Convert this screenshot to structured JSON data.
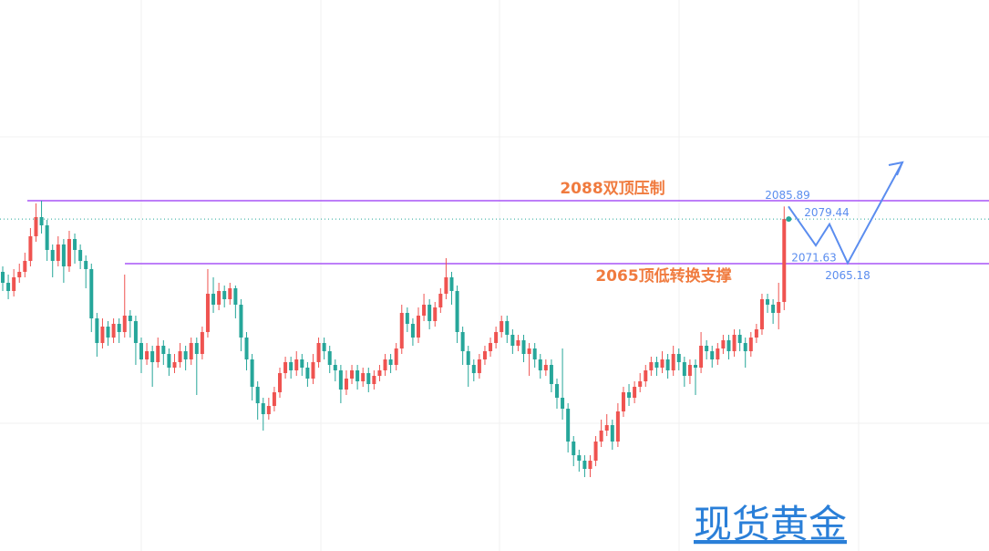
{
  "chart_data": {
    "type": "candlestick",
    "ylim": [
      1960,
      2161.33
    ],
    "up_color": "#ef5350",
    "down_color": "#26a69a",
    "open": [
      2062,
      2058,
      2055,
      2060,
      2062,
      2066,
      2075,
      2082,
      2079,
      2070,
      2066,
      2072,
      2064,
      2074,
      2070,
      2066,
      2063,
      2045,
      2036,
      2042,
      2038,
      2043,
      2040,
      2046,
      2044,
      2036,
      2030,
      2033,
      2029,
      2035,
      2032,
      2027,
      2029,
      2033,
      2030,
      2036,
      2032,
      2040,
      2054,
      2050,
      2055,
      2052,
      2056,
      2050,
      2038,
      2030,
      2020,
      2014,
      2010,
      2013,
      2018,
      2025,
      2029,
      2026,
      2030,
      2027,
      2023,
      2029,
      2036,
      2033,
      2028,
      2026,
      2019,
      2023,
      2026,
      2022,
      2025,
      2021,
      2024,
      2026,
      2030,
      2028,
      2034,
      2047,
      2043,
      2038,
      2046,
      2050,
      2044,
      2049,
      2054,
      2060,
      2055,
      2040,
      2033,
      2028,
      2025,
      2030,
      2033,
      2036,
      2040,
      2044,
      2039,
      2035,
      2037,
      2032,
      2034,
      2030,
      2026,
      2028,
      2021,
      2016,
      2012,
      2000,
      1995,
      1993,
      1990,
      1993,
      2000,
      2004,
      2006,
      2000,
      2011,
      2018,
      2016,
      2020,
      2022,
      2026,
      2029,
      2027,
      2030,
      2026,
      2032,
      2029,
      2024,
      2028,
      2027,
      2035,
      2033,
      2030,
      2034,
      2037,
      2033,
      2039,
      2036,
      2033,
      2038,
      2041,
      2052,
      2050,
      2047,
      2051
    ],
    "high": [
      2064,
      2061,
      2063,
      2065,
      2069,
      2078,
      2087,
      2088,
      2081,
      2072,
      2075,
      2074,
      2077,
      2076,
      2072,
      2068,
      2065,
      2047,
      2045,
      2044,
      2045,
      2045,
      2061,
      2048,
      2046,
      2038,
      2036,
      2035,
      2038,
      2037,
      2034,
      2032,
      2036,
      2035,
      2038,
      2038,
      2042,
      2063,
      2060,
      2058,
      2057,
      2058,
      2057,
      2052,
      2040,
      2032,
      2022,
      2016,
      2016,
      2020,
      2027,
      2031,
      2031,
      2033,
      2032,
      2029,
      2032,
      2038,
      2038,
      2035,
      2030,
      2028,
      2026,
      2028,
      2028,
      2027,
      2027,
      2026,
      2028,
      2032,
      2032,
      2036,
      2050,
      2049,
      2045,
      2049,
      2054,
      2052,
      2051,
      2056,
      2067,
      2062,
      2057,
      2042,
      2035,
      2030,
      2032,
      2035,
      2038,
      2042,
      2046,
      2046,
      2041,
      2039,
      2039,
      2036,
      2036,
      2032,
      2030,
      2030,
      2023,
      2034,
      2014,
      2002,
      1997,
      1995,
      1995,
      2002,
      2008,
      2010,
      2008,
      2014,
      2020,
      2021,
      2022,
      2025,
      2028,
      2031,
      2031,
      2033,
      2032,
      2035,
      2034,
      2031,
      2030,
      2030,
      2040,
      2037,
      2035,
      2036,
      2039,
      2039,
      2041,
      2041,
      2038,
      2040,
      2043,
      2054,
      2054,
      2052,
      2058,
      2085.89
    ],
    "low": [
      2055,
      2052,
      2053,
      2058,
      2060,
      2064,
      2073,
      2076,
      2066,
      2060,
      2064,
      2058,
      2062,
      2065,
      2063,
      2056,
      2040,
      2031,
      2034,
      2035,
      2036,
      2036,
      2038,
      2038,
      2028,
      2025,
      2028,
      2020,
      2027,
      2028,
      2024,
      2025,
      2027,
      2026,
      2028,
      2017,
      2030,
      2038,
      2047,
      2048,
      2049,
      2050,
      2045,
      2033,
      2026,
      2015,
      2008,
      2004,
      2008,
      2011,
      2016,
      2023,
      2023,
      2024,
      2024,
      2020,
      2021,
      2027,
      2030,
      2025,
      2022,
      2014,
      2017,
      2021,
      2019,
      2020,
      2018,
      2019,
      2022,
      2024,
      2025,
      2026,
      2032,
      2040,
      2035,
      2036,
      2044,
      2041,
      2042,
      2047,
      2052,
      2050,
      2036,
      2028,
      2020,
      2022,
      2023,
      2028,
      2031,
      2034,
      2038,
      2036,
      2032,
      2033,
      2029,
      2024,
      2027,
      2023,
      2024,
      2018,
      2012,
      2008,
      1996,
      1991,
      1989,
      1987,
      1987,
      1991,
      1998,
      2002,
      1997,
      1998,
      2009,
      2013,
      2014,
      2018,
      2020,
      2024,
      2024,
      2025,
      2023,
      2024,
      2026,
      2020,
      2021,
      2017,
      2025,
      2030,
      2027,
      2028,
      2032,
      2030,
      2031,
      2033,
      2027,
      2031,
      2036,
      2039,
      2047,
      2043,
      2041,
      2048
    ],
    "close": [
      2058,
      2055,
      2060,
      2062,
      2066,
      2075,
      2082,
      2079,
      2070,
      2066,
      2072,
      2064,
      2074,
      2070,
      2066,
      2063,
      2045,
      2036,
      2042,
      2038,
      2043,
      2040,
      2046,
      2044,
      2036,
      2030,
      2033,
      2029,
      2035,
      2032,
      2027,
      2029,
      2033,
      2030,
      2036,
      2032,
      2040,
      2054,
      2050,
      2055,
      2052,
      2056,
      2050,
      2038,
      2030,
      2020,
      2014,
      2010,
      2013,
      2018,
      2025,
      2029,
      2026,
      2030,
      2027,
      2023,
      2029,
      2036,
      2033,
      2028,
      2026,
      2019,
      2023,
      2026,
      2022,
      2025,
      2021,
      2024,
      2026,
      2030,
      2028,
      2034,
      2047,
      2043,
      2038,
      2046,
      2050,
      2044,
      2049,
      2054,
      2060,
      2055,
      2040,
      2033,
      2028,
      2025,
      2030,
      2033,
      2036,
      2040,
      2044,
      2039,
      2035,
      2037,
      2032,
      2034,
      2030,
      2026,
      2028,
      2021,
      2016,
      2012,
      2000,
      1995,
      1993,
      1990,
      1993,
      2000,
      2004,
      2006,
      2000,
      2011,
      2018,
      2016,
      2020,
      2022,
      2026,
      2029,
      2027,
      2030,
      2026,
      2032,
      2029,
      2024,
      2028,
      2027,
      2035,
      2033,
      2030,
      2034,
      2037,
      2033,
      2039,
      2036,
      2033,
      2038,
      2041,
      2052,
      2050,
      2047,
      2051,
      2081.3
    ],
    "levels": [
      {
        "value": 2088,
        "text": "2088双顶压制",
        "color": "#a855f7"
      },
      {
        "value": 2065,
        "text": "2065顶低转换支撑",
        "color": "#a855f7"
      }
    ],
    "forecast": {
      "values": [
        2085.89,
        2071.63,
        2079.44,
        2065.18,
        2102
      ],
      "color": "#5b8def"
    },
    "watermark": "现货黄金"
  }
}
